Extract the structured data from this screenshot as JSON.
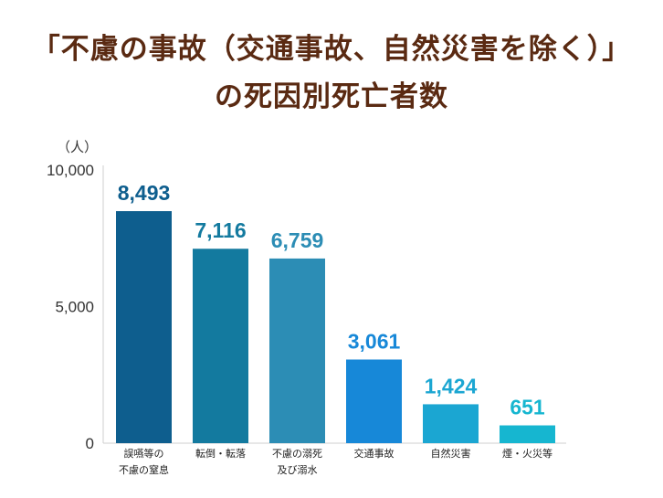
{
  "title_line1": "「不慮の事故（交通事故、自然災害を除く）」",
  "title_line2": "の死因別死亡者数",
  "chart_data": {
    "type": "bar",
    "title": "「不慮の事故（交通事故、自然災害を除く）」の死因別死亡者数",
    "ylabel": "（人）",
    "ylim": [
      0,
      10000
    ],
    "y_ticks": [
      "0",
      "5,000",
      "10,000"
    ],
    "y_tick_values": [
      0,
      5000,
      10000
    ],
    "categories": [
      [
        "誤嚥等の",
        "不慮の窒息"
      ],
      [
        "転倒・転落"
      ],
      [
        "不慮の溺死",
        "及び溺水"
      ],
      [
        "交通事故"
      ],
      [
        "自然災害"
      ],
      [
        "煙・火災等"
      ]
    ],
    "values": [
      8493,
      7116,
      6759,
      3061,
      1424,
      651
    ],
    "value_labels": [
      "8,493",
      "7,116",
      "6,759",
      "3,061",
      "1,424",
      "651"
    ],
    "colors": [
      "#0e5e8e",
      "#137a9f",
      "#2c8db5",
      "#1788d8",
      "#1ba6d2",
      "#16b6d0"
    ],
    "label_colors": [
      "#0e5e8e",
      "#137a9f",
      "#2c8db5",
      "#1788d8",
      "#1ba6d2",
      "#16b6d0"
    ],
    "grid": false,
    "legend": "none"
  }
}
